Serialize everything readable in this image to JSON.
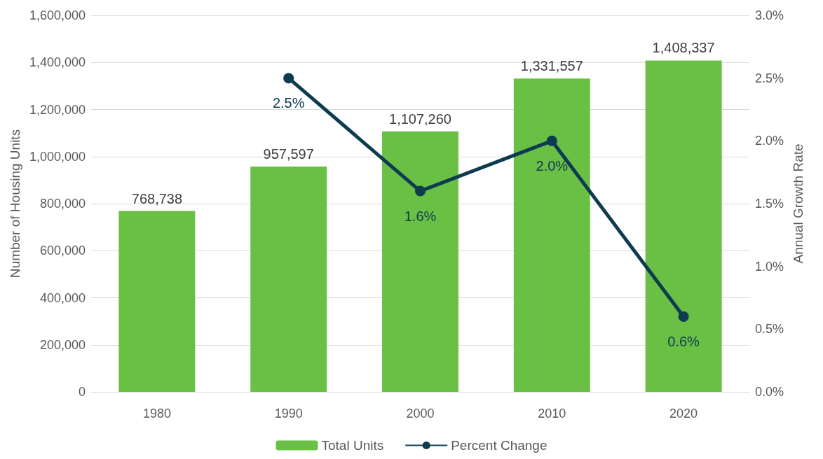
{
  "chart_data": {
    "type": "bar",
    "ylabel": "Number of Housing Units",
    "y2label": "Annual Growth Rate",
    "categories": [
      "1980",
      "1990",
      "2000",
      "2010",
      "2020"
    ],
    "series": [
      {
        "name": "Total Units",
        "color": "#6abf45",
        "values": [
          768738,
          957597,
          1107260,
          1331557,
          1408337
        ],
        "value_labels": [
          "768,738",
          "957,597",
          "1,107,260",
          "1,331,557",
          "1,408,337"
        ]
      },
      {
        "name": "Percent Change",
        "type": "line",
        "axis": "y2",
        "color": "#0d3b50",
        "values": [
          null,
          2.5,
          1.6,
          2.0,
          0.6
        ],
        "value_labels": [
          null,
          "2.5%",
          "1.6%",
          "2.0%",
          "0.6%"
        ]
      }
    ],
    "ylim": [
      0,
      1600000
    ],
    "yticks": [
      {
        "value": 0,
        "label": "0"
      },
      {
        "value": 200000,
        "label": "200,000"
      },
      {
        "value": 400000,
        "label": "400,000"
      },
      {
        "value": 600000,
        "label": "600,000"
      },
      {
        "value": 800000,
        "label": "800,000"
      },
      {
        "value": 1000000,
        "label": "1,000,000"
      },
      {
        "value": 1200000,
        "label": "1,200,000"
      },
      {
        "value": 1400000,
        "label": "1,400,000"
      },
      {
        "value": 1600000,
        "label": "1,600,000"
      }
    ],
    "y2lim": [
      0,
      3
    ],
    "y2ticks": [
      {
        "value": 0,
        "label": "0.0%"
      },
      {
        "value": 0.5,
        "label": "0.5%"
      },
      {
        "value": 1,
        "label": "1.0%"
      },
      {
        "value": 1.5,
        "label": "1.5%"
      },
      {
        "value": 2,
        "label": "2.0%"
      },
      {
        "value": 2.5,
        "label": "2.5%"
      },
      {
        "value": 3,
        "label": "3.0%"
      }
    ],
    "grid": "y",
    "legend": "bottom",
    "marker": "circle",
    "line_style": "solid"
  }
}
